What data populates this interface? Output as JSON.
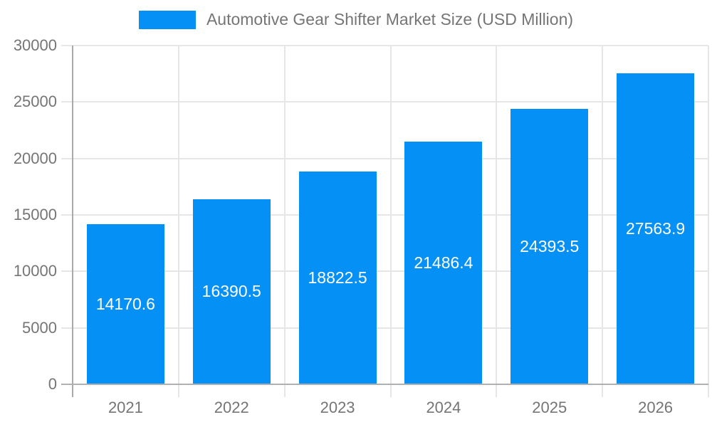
{
  "legend": {
    "label": "Automotive Gear Shifter Market Size (USD Million)"
  },
  "chart_data": {
    "type": "bar",
    "title": "Automotive Gear Shifter Market Size (USD Million)",
    "categories": [
      "2021",
      "2022",
      "2023",
      "2024",
      "2025",
      "2026"
    ],
    "values": [
      14170.6,
      16390.5,
      18822.5,
      21486.4,
      24393.5,
      27563.9
    ],
    "value_labels": [
      "14170.6",
      "16390.5",
      "18822.5",
      "21486.4",
      "24393.5",
      "27563.9"
    ],
    "ylim": [
      0,
      30000
    ],
    "yticks": [
      0,
      5000,
      10000,
      15000,
      20000,
      25000,
      30000
    ],
    "ytick_labels": [
      "0",
      "5000",
      "10000",
      "15000",
      "20000",
      "25000",
      "30000"
    ],
    "grid": "horizontal-and-vertical",
    "legend_position": "top-center",
    "colors": {
      "bar": "#0590F5",
      "tick_text": "#757575",
      "value_text": "#ffffff",
      "grid": "#e6e6e6",
      "axis": "#b0b0b0"
    }
  }
}
